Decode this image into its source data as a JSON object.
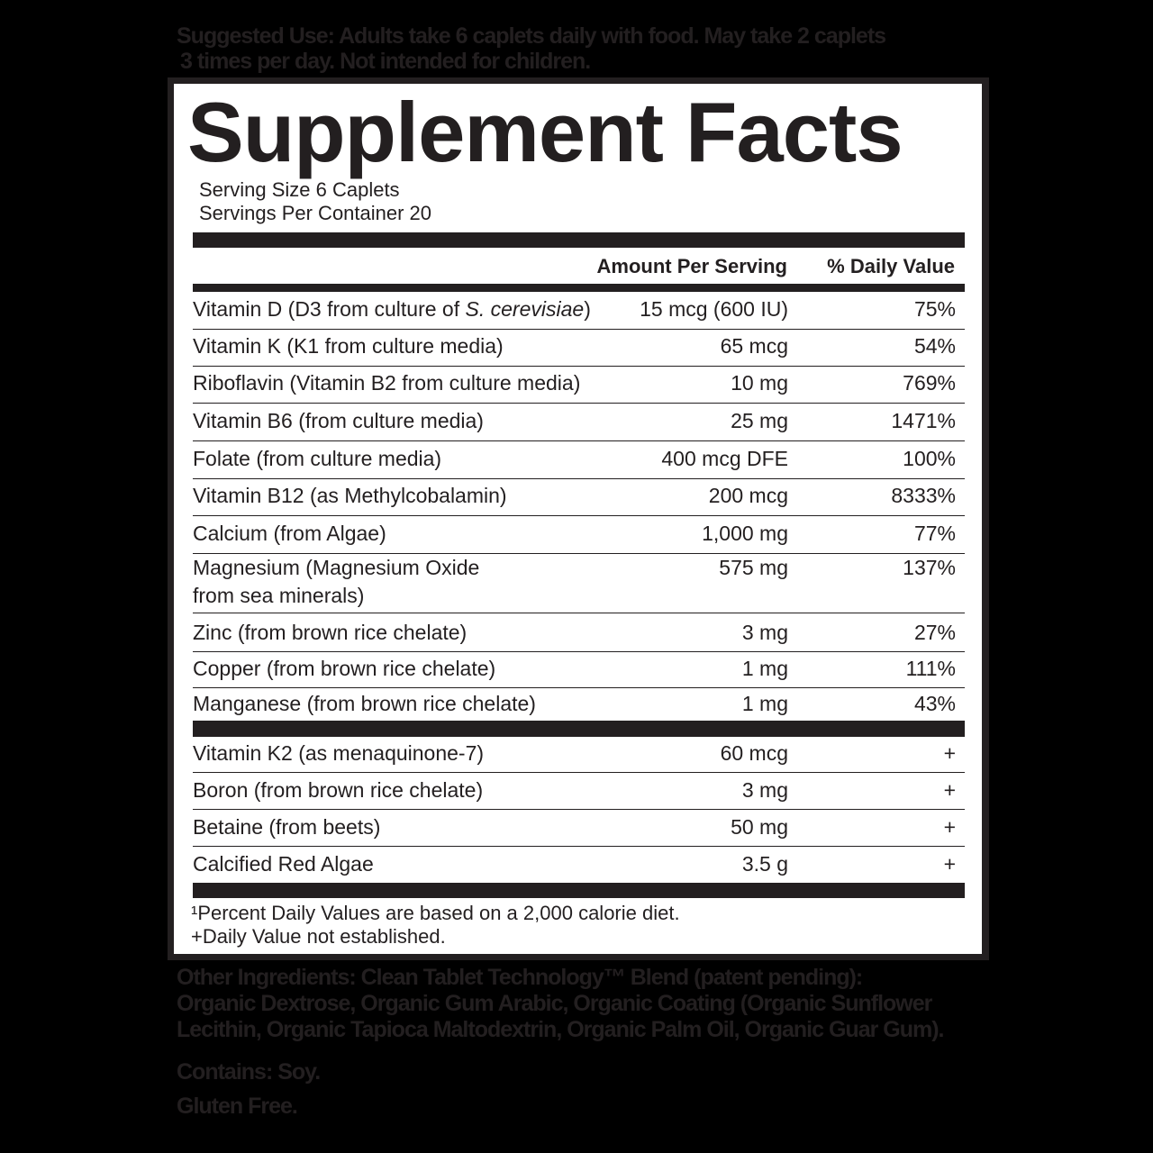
{
  "suggested_use": [
    "Suggested Use: Adults take 6 caplets daily with food. May take 2 caplets",
    "3 times per day. Not intended for children."
  ],
  "title": "Supplement Facts",
  "serving_size": "Serving Size 6 Caplets",
  "servings_per_container": "Servings Per Container 20",
  "header": {
    "amount": "Amount Per Serving",
    "dv": "% Daily Value"
  },
  "rows": [
    {
      "name": "Vitamin D (D3 from culture of ",
      "name_italic": "S. cerevisiae",
      "name_end": ")",
      "amount": "15 mcg (600 IU)",
      "dv": "75%"
    },
    {
      "name": "Vitamin K (K1 from culture media)",
      "amount": "65 mcg",
      "dv": "54%"
    },
    {
      "name": "Riboflavin (Vitamin B2 from culture media)",
      "amount": "10 mg",
      "dv": "769%"
    },
    {
      "name": "Vitamin B6 (from culture media)",
      "amount": "25 mg",
      "dv": "1471%"
    },
    {
      "name": "Folate (from culture media)",
      "amount": "400 mcg DFE",
      "dv": "100%"
    },
    {
      "name": "Vitamin B12 (as Methylcobalamin)",
      "amount": "200 mcg",
      "dv": "8333%"
    },
    {
      "name": "Calcium (from Algae)",
      "amount": "1,000 mg",
      "dv": "77%"
    },
    {
      "name": "Magnesium (Magnesium Oxide",
      "name_line2": "from sea minerals)",
      "amount": "575 mg",
      "dv": "137%"
    },
    {
      "name": "Zinc (from brown rice chelate)",
      "amount": "3 mg",
      "dv": "27%"
    },
    {
      "name": "Copper (from brown rice chelate)",
      "amount": "1 mg",
      "dv": "111%"
    },
    {
      "name": "Manganese (from brown rice chelate)",
      "amount": "1 mg",
      "dv": "43%"
    }
  ],
  "rows2": [
    {
      "name": "Vitamin K2 (as menaquinone-7)",
      "amount": "60 mcg",
      "dv": "+"
    },
    {
      "name": "Boron (from brown rice chelate)",
      "amount": "3 mg",
      "dv": "+"
    },
    {
      "name": "Betaine (from beets)",
      "amount": "50 mg",
      "dv": "+"
    },
    {
      "name": "Calcified Red Algae",
      "amount": "3.5 g",
      "dv": "+"
    }
  ],
  "footnotes": [
    "¹Percent Daily Values are based on a 2,000 calorie diet.",
    "+Daily Value not established."
  ],
  "other_ingredients": [
    "Other Ingredients: Clean Tablet Technology™ Blend (patent pending):",
    "Organic Dextrose, Organic Gum Arabic, Organic Coating (Organic Sunflower",
    "Lecithin, Organic Tapioca Maltodextrin, Organic Palm Oil, Organic Guar Gum)."
  ],
  "contains": "Contains: Soy.",
  "gluten": "Gluten Free.",
  "colors": {
    "ink": "#231f20",
    "background": "#000000",
    "panel": "#ffffff"
  }
}
